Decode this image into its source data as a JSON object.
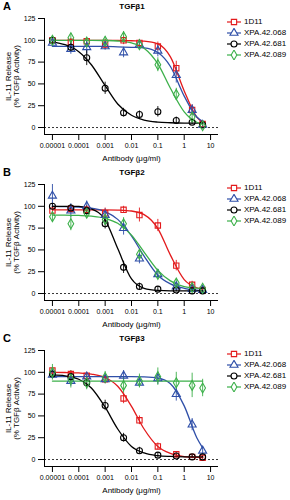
{
  "chart_data": [
    {
      "type": "scatter",
      "panel_label": "A",
      "title": "TGFβ1",
      "x_label": "Antibody (μg/ml)",
      "y_label": "IL-11 Release\n(% TGFβ Activity)",
      "log": "x",
      "grid": false,
      "legend": "right",
      "xlim": [
        5e-06,
        20
      ],
      "ylim": [
        -8,
        125
      ],
      "xticks": [
        1e-05,
        0.0001,
        0.001,
        0.01,
        0.1,
        1,
        10
      ],
      "yticks": [
        0,
        25,
        50,
        75,
        100,
        125
      ],
      "baseline": 0,
      "x": [
        1e-05,
        5e-05,
        0.0002,
        0.001,
        0.005,
        0.02,
        0.1,
        0.5,
        2,
        5
      ],
      "fit_x": [
        1e-05,
        3e-05,
        0.0001,
        0.0003,
        0.001,
        0.003,
        0.01,
        0.03,
        0.1,
        0.3,
        1,
        3,
        5
      ],
      "series": [
        {
          "name": "1D11",
          "color": "#e31a1c",
          "marker": "square",
          "values": [
            100,
            98,
            99,
            95,
            100,
            97,
            93,
            68,
            20,
            4
          ],
          "error": [
            3,
            4,
            3,
            6,
            5,
            4,
            5,
            8,
            6,
            3
          ],
          "fit": [
            100,
            100,
            100,
            100,
            100,
            100,
            99.5,
            99,
            96,
            81,
            42,
            12,
            6
          ]
        },
        {
          "name": "XPA.42.068",
          "color": "#2f4fa8",
          "marker": "triangle",
          "values": [
            97,
            90,
            92,
            93,
            86,
            95,
            88,
            60,
            20,
            3
          ],
          "error": [
            5,
            6,
            8,
            4,
            6,
            5,
            7,
            9,
            6,
            3
          ],
          "fit": [
            93,
            93,
            93,
            93,
            93,
            92.5,
            92,
            91.4,
            86,
            70,
            36,
            12,
            7
          ]
        },
        {
          "name": "XPA.42.681",
          "color": "#000000",
          "marker": "circle",
          "values": [
            100,
            92,
            80,
            45,
            17,
            15,
            18,
            8,
            6,
            3
          ],
          "error": [
            3,
            6,
            9,
            7,
            5,
            4,
            6,
            4,
            3,
            2
          ],
          "fit": [
            98,
            95,
            87,
            72,
            48,
            27,
            14,
            8.5,
            6.2,
            5.5,
            5.1,
            5,
            5
          ]
        },
        {
          "name": "XPA.42.089",
          "color": "#3cb04a",
          "marker": "diamond",
          "values": [
            100,
            103,
            98,
            99,
            104,
            95,
            72,
            38,
            12,
            2
          ],
          "error": [
            4,
            5,
            4,
            5,
            6,
            5,
            8,
            7,
            5,
            3
          ],
          "fit": [
            100,
            100,
            100,
            100,
            99.8,
            99.2,
            97,
            91,
            73,
            45,
            18,
            6,
            3.6
          ]
        }
      ]
    },
    {
      "type": "scatter",
      "panel_label": "B",
      "title": "TGFβ2",
      "x_label": "Antibody (μg/ml)",
      "y_label": "IL-11 Release\n(% TGFβ Activity)",
      "log": "x",
      "grid": false,
      "legend": "right",
      "xlim": [
        5e-06,
        20
      ],
      "ylim": [
        -8,
        125
      ],
      "xticks": [
        1e-05,
        0.0001,
        0.001,
        0.01,
        0.1,
        1,
        10
      ],
      "yticks": [
        0,
        25,
        50,
        75,
        100,
        125
      ],
      "baseline": 0,
      "x": [
        1e-05,
        5e-05,
        0.0002,
        0.001,
        0.005,
        0.02,
        0.1,
        0.5,
        2,
        5
      ],
      "fit_x": [
        1e-05,
        3e-05,
        0.0001,
        0.0003,
        0.001,
        0.003,
        0.01,
        0.03,
        0.1,
        0.3,
        1,
        3,
        5
      ],
      "series": [
        {
          "name": "1D11",
          "color": "#e31a1c",
          "marker": "square",
          "values": [
            95,
            97,
            96,
            92,
            96,
            90,
            78,
            32,
            10,
            4
          ],
          "error": [
            4,
            3,
            5,
            6,
            4,
            8,
            7,
            6,
            4,
            3
          ],
          "fit": [
            96,
            96,
            96,
            96,
            96,
            95.7,
            94.6,
            90.5,
            74.5,
            44,
            16,
            6.6,
            4.9
          ]
        },
        {
          "name": "XPA.42.068",
          "color": "#2f4fa8",
          "marker": "triangle",
          "values": [
            112,
            95,
            100,
            90,
            75,
            40,
            22,
            8,
            5,
            4
          ],
          "error": [
            13,
            8,
            6,
            7,
            8,
            6,
            5,
            4,
            3,
            2
          ],
          "fit": [
            100,
            99.7,
            99,
            98,
            94,
            85,
            66,
            43,
            21,
            11,
            6,
            4,
            3.5
          ]
        },
        {
          "name": "XPA.42.681",
          "color": "#000000",
          "marker": "circle",
          "values": [
            100,
            98,
            95,
            80,
            30,
            8,
            5,
            4,
            3,
            3
          ],
          "error": [
            3,
            4,
            5,
            6,
            7,
            4,
            3,
            2,
            2,
            2
          ],
          "fit": [
            100,
            100,
            100,
            97,
            84.5,
            51.5,
            16.7,
            6,
            3.5,
            3,
            3,
            3,
            3
          ]
        },
        {
          "name": "XPA.42.089",
          "color": "#3cb04a",
          "marker": "diamond",
          "values": [
            88,
            80,
            92,
            85,
            80,
            45,
            22,
            12,
            7,
            6
          ],
          "error": [
            6,
            8,
            5,
            6,
            7,
            6,
            5,
            4,
            3,
            3
          ],
          "fit": [
            90,
            89.9,
            89.5,
            88.7,
            86.3,
            80.5,
            67,
            47.5,
            26.5,
            14.5,
            8,
            6.3,
            5.8
          ]
        }
      ]
    },
    {
      "type": "scatter",
      "panel_label": "C",
      "title": "TGFβ3",
      "x_label": "Antibody (μg/ml)",
      "y_label": "IL-11 Release\n(% TGFβ Activity)",
      "log": "x",
      "grid": false,
      "legend": "right",
      "xlim": [
        5e-06,
        20
      ],
      "ylim": [
        -8,
        125
      ],
      "xticks": [
        1e-05,
        0.0001,
        0.001,
        0.01,
        0.1,
        1,
        10
      ],
      "yticks": [
        0,
        25,
        50,
        75,
        100,
        125
      ],
      "baseline": 0,
      "x": [
        1e-05,
        5e-05,
        0.0002,
        0.001,
        0.005,
        0.02,
        0.1,
        0.5,
        2,
        5
      ],
      "fit_x": [
        1e-05,
        3e-05,
        0.0001,
        0.0003,
        0.001,
        0.003,
        0.01,
        0.03,
        0.1,
        0.3,
        1,
        3,
        5
      ],
      "series": [
        {
          "name": "1D11",
          "color": "#e31a1c",
          "marker": "square",
          "values": [
            102,
            98,
            96,
            92,
            70,
            45,
            15,
            6,
            3,
            2
          ],
          "error": [
            3,
            4,
            4,
            5,
            6,
            5,
            4,
            3,
            2,
            2
          ],
          "fit": [
            100,
            99.8,
            99.3,
            98,
            94,
            84,
            61,
            35,
            15,
            7,
            3.4,
            2.5,
            2.3
          ]
        },
        {
          "name": "XPA.42.068",
          "color": "#2f4fa8",
          "marker": "triangle",
          "values": [
            97,
            90,
            95,
            92,
            96,
            88,
            93,
            75,
            40,
            10
          ],
          "error": [
            5,
            6,
            4,
            5,
            6,
            5,
            7,
            8,
            7,
            4
          ],
          "fit": [
            95,
            95,
            95,
            95,
            95,
            95,
            95,
            94.7,
            93.4,
            87,
            61.5,
            25,
            13.4
          ]
        },
        {
          "name": "XPA.42.681",
          "color": "#000000",
          "marker": "circle",
          "values": [
            98,
            95,
            88,
            62,
            25,
            10,
            5,
            4,
            3,
            3
          ],
          "error": [
            4,
            5,
            6,
            6,
            5,
            4,
            3,
            2,
            2,
            2
          ],
          "fit": [
            97,
            96,
            92,
            82,
            60,
            35,
            15,
            7.5,
            4.4,
            3.5,
            3.1,
            3,
            3
          ]
        },
        {
          "name": "XPA.42.089",
          "color": "#3cb04a",
          "marker": "diamond",
          "values": [
            100,
            92,
            88,
            94,
            85,
            90,
            95,
            88,
            85,
            82
          ],
          "error": [
            9,
            10,
            8,
            7,
            9,
            8,
            10,
            12,
            14,
            10
          ],
          "fit": [
            90,
            90,
            90,
            90,
            90,
            90,
            90,
            90,
            90,
            90,
            90,
            90,
            90
          ]
        }
      ]
    }
  ]
}
